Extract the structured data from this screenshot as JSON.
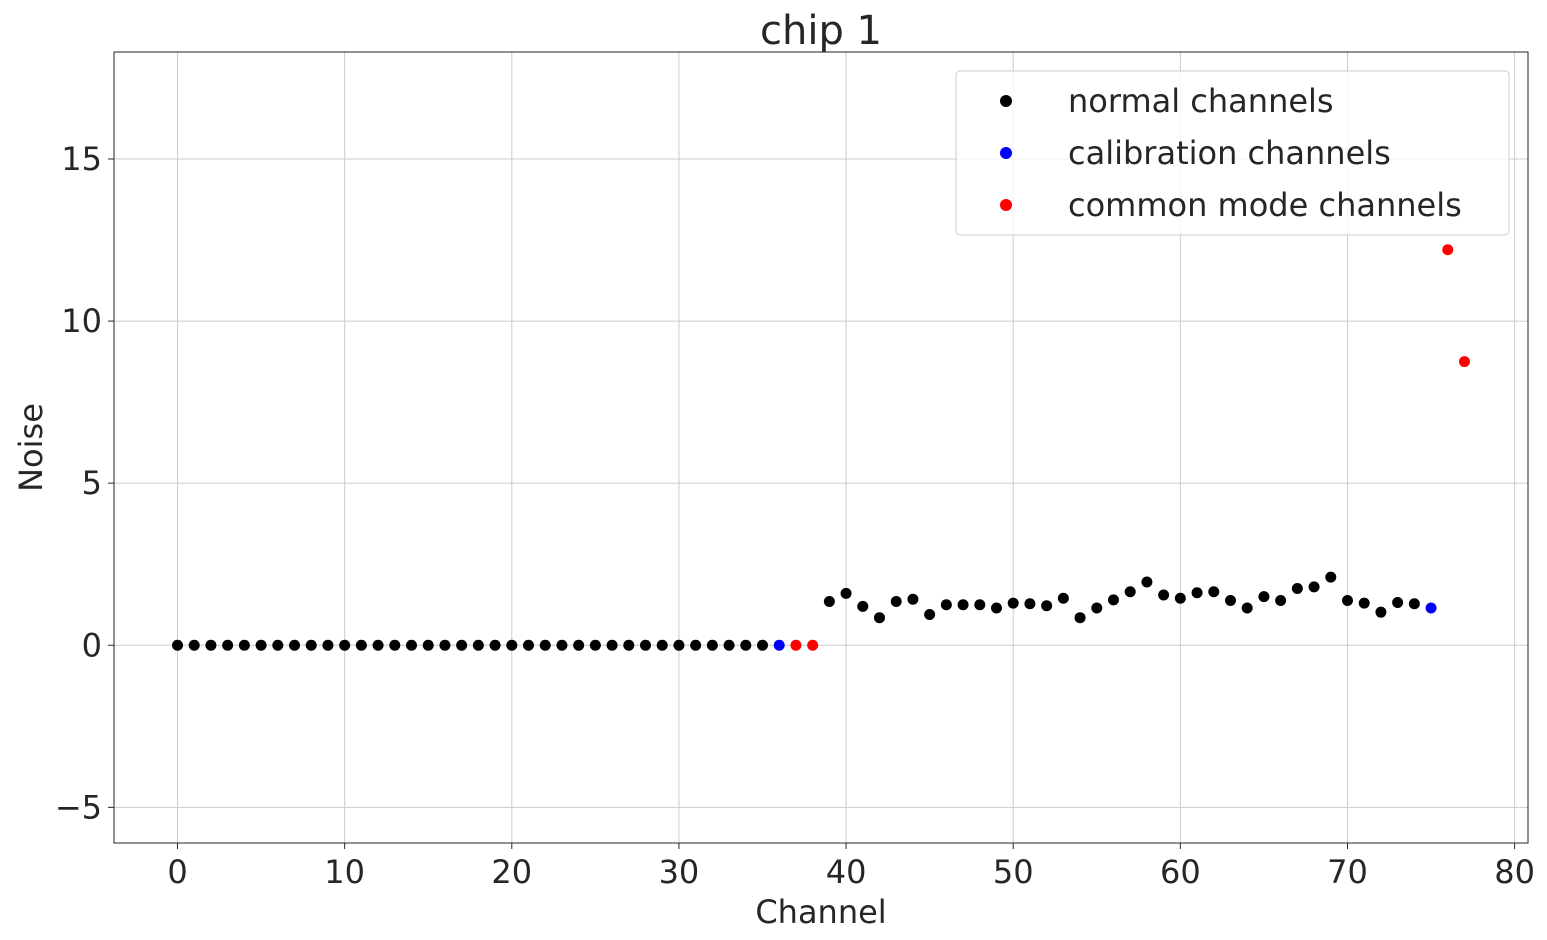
{
  "chart_data": {
    "type": "scatter",
    "title": "chip 1",
    "xlabel": "Channel",
    "ylabel": "Noise",
    "xlim": [
      -3.8,
      80.8
    ],
    "ylim": [
      -6.1,
      18.3
    ],
    "xticks": [
      0,
      10,
      20,
      30,
      40,
      50,
      60,
      70,
      80
    ],
    "yticks": [
      -5,
      0,
      5,
      10,
      15
    ],
    "ytick_labels": [
      "−5",
      "0",
      "5",
      "10",
      "15"
    ],
    "grid": true,
    "legend_position": "top-right",
    "series": [
      {
        "name": "normal channels",
        "color": "#000000",
        "x": [
          0,
          1,
          2,
          3,
          4,
          5,
          6,
          7,
          8,
          9,
          10,
          11,
          12,
          13,
          14,
          15,
          16,
          17,
          18,
          19,
          20,
          21,
          22,
          23,
          24,
          25,
          26,
          27,
          28,
          29,
          30,
          31,
          32,
          33,
          34,
          35,
          39,
          40,
          41,
          42,
          43,
          44,
          45,
          46,
          47,
          48,
          49,
          50,
          51,
          52,
          53,
          54,
          55,
          56,
          57,
          58,
          59,
          60,
          61,
          62,
          63,
          64,
          65,
          66,
          67,
          68,
          69,
          70,
          71,
          72,
          73,
          74
        ],
        "y": [
          0,
          0,
          0,
          0,
          0,
          0,
          0,
          0,
          0,
          0,
          0,
          0,
          0,
          0,
          0,
          0,
          0,
          0,
          0,
          0,
          0,
          0,
          0,
          0,
          0,
          0,
          0,
          0,
          0,
          0,
          0,
          0,
          0,
          0,
          0,
          0,
          1.35,
          1.6,
          1.2,
          0.85,
          1.35,
          1.42,
          0.95,
          1.25,
          1.25,
          1.25,
          1.15,
          1.3,
          1.28,
          1.22,
          1.45,
          0.85,
          1.15,
          1.4,
          1.65,
          1.95,
          1.55,
          1.45,
          1.62,
          1.65,
          1.38,
          1.15,
          1.5,
          1.38,
          1.75,
          1.8,
          2.1,
          1.38,
          1.3,
          1.02,
          1.32,
          1.28
        ]
      },
      {
        "name": "calibration channels",
        "color": "#0000ff",
        "x": [
          36,
          75
        ],
        "y": [
          0,
          1.15
        ]
      },
      {
        "name": "common mode channels",
        "color": "#ff0000",
        "x": [
          37,
          38,
          76,
          77
        ],
        "y": [
          0,
          0,
          12.2,
          8.75
        ]
      }
    ]
  }
}
